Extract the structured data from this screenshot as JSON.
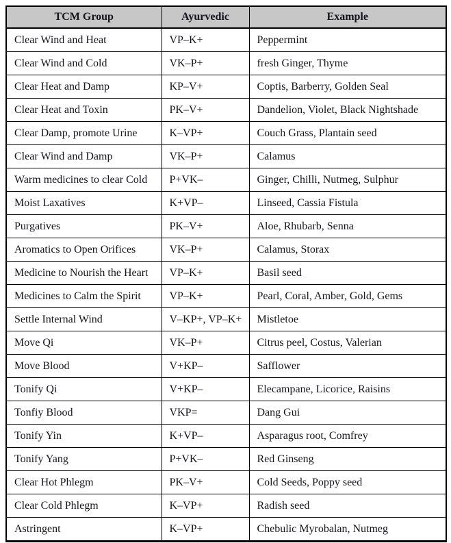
{
  "table": {
    "columns": [
      {
        "label": "TCM Group"
      },
      {
        "label": "Ayurvedic"
      },
      {
        "label": "Example"
      }
    ],
    "rows": [
      [
        "Clear Wind and Heat",
        "VP–K+",
        "Peppermint"
      ],
      [
        "Clear Wind and Cold",
        "VK–P+",
        "fresh Ginger, Thyme"
      ],
      [
        "Clear Heat and Damp",
        "KP–V+",
        "Coptis, Barberry, Golden Seal"
      ],
      [
        "Clear Heat and Toxin",
        "PK–V+",
        "Dandelion, Violet, Black Nightshade"
      ],
      [
        "Clear Damp, promote Urine",
        "K–VP+",
        "Couch Grass, Plantain seed"
      ],
      [
        "Clear Wind and Damp",
        "VK–P+",
        "Calamus"
      ],
      [
        "Warm medicines to clear Cold",
        "P+VK–",
        "Ginger, Chilli, Nutmeg, Sulphur"
      ],
      [
        "Moist Laxatives",
        "K+VP–",
        "Linseed, Cassia Fistula"
      ],
      [
        "Purgatives",
        "PK–V+",
        "Aloe, Rhubarb, Senna"
      ],
      [
        "Aromatics to Open Orifices",
        "VK–P+",
        "Calamus, Storax"
      ],
      [
        "Medicine to Nourish the Heart",
        "VP–K+",
        "Basil seed"
      ],
      [
        "Medicines to Calm the Spirit",
        "VP–K+",
        "Pearl, Coral, Amber, Gold, Gems"
      ],
      [
        "Settle Internal Wind",
        "V–KP+, VP–K+",
        "Mistletoe"
      ],
      [
        "Move Qi",
        "VK–P+",
        "Citrus peel, Costus, Valerian"
      ],
      [
        "Move Blood",
        "V+KP–",
        "Safflower"
      ],
      [
        "Tonify Qi",
        "V+KP–",
        "Elecampane, Licorice, Raisins"
      ],
      [
        "Tonfiy Blood",
        "VKP=",
        "Dang Gui"
      ],
      [
        "Tonify Yin",
        "K+VP–",
        "Asparagus root, Comfrey"
      ],
      [
        "Tonify Yang",
        "P+VK–",
        "Red Ginseng"
      ],
      [
        "Clear Hot Phlegm",
        "PK–V+",
        "Cold Seeds, Poppy seed"
      ],
      [
        "Clear Cold Phlegm",
        "K–VP+",
        "Radish seed"
      ],
      [
        "Astringent",
        "K–VP+",
        "Chebulic Myrobalan, Nutmeg"
      ]
    ],
    "colors": {
      "header_bg": "#c6c7c6",
      "border": "#000000",
      "text": "#14141c"
    }
  }
}
